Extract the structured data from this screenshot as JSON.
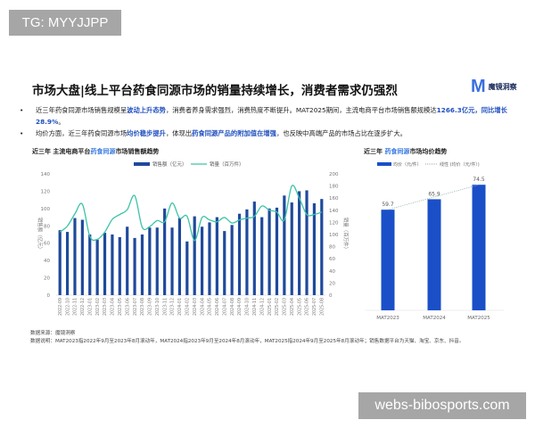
{
  "watermarks": {
    "top_left": "TG: MYYJJPP",
    "bottom_right": "webs-bibosports.com"
  },
  "header": {
    "title": "市场大盘|线上平台药食同源市场的销量持续增长，消费者需求仍强烈",
    "logo_text": "魔镜洞察"
  },
  "bullets": [
    {
      "parts": [
        {
          "text": "近三年药食同源市场销售规模呈",
          "hl": false
        },
        {
          "text": "波动上升态势",
          "hl": true
        },
        {
          "text": "，消费者养身需求强烈，消费热度不断提升。MAT2025期间，主流电商平台市场销售额规模达",
          "hl": false
        },
        {
          "text": "1266.3亿元，同比增长28.9%",
          "hl": true
        },
        {
          "text": "。",
          "hl": false
        }
      ]
    },
    {
      "parts": [
        {
          "text": "均价方面，近三年药食同源市场",
          "hl": false
        },
        {
          "text": "均价稳步提升",
          "hl": true
        },
        {
          "text": "，体现出",
          "hl": false
        },
        {
          "text": "药食同源产品的附加值在增强",
          "hl": true
        },
        {
          "text": "，也反映中高端产品的市场占比在逐步扩大。",
          "hl": false
        }
      ]
    }
  ],
  "left_chart": {
    "title_pre": "近三年 主流电商平台",
    "title_hl": "药食同源",
    "title_post": "市场销售额趋势"
  },
  "right_chart": {
    "title_pre": "近三年 ",
    "title_hl": "药食同源",
    "title_post": "市场均价趋势"
  },
  "chart_data": [
    {
      "type": "bar+line",
      "categories": [
        "2022-09",
        "2022-10",
        "2022-11",
        "2022-12",
        "2023-01",
        "2023-02",
        "2023-03",
        "2023-04",
        "2023-05",
        "2023-06",
        "2023-07",
        "2023-08",
        "2023-09",
        "2023-10",
        "2023-11",
        "2023-12",
        "2024-01",
        "2024-02",
        "2024-03",
        "2024-04",
        "2024-05",
        "2024-06",
        "2024-07",
        "2024-08",
        "2024-09",
        "2024-10",
        "2024-11",
        "2024-12",
        "2025-01",
        "2025-02",
        "2025-03",
        "2025-04",
        "2025-05",
        "2025-06",
        "2025-07",
        "2025-08"
      ],
      "series": [
        {
          "name": "销售额（亿元）",
          "type": "bar",
          "axis": "left",
          "color": "#1f4a9c",
          "values": [
            75,
            73,
            89,
            87,
            70,
            64,
            72,
            70,
            67,
            79,
            66,
            70,
            78,
            78,
            100,
            78,
            89,
            62,
            91,
            79,
            84,
            90,
            74,
            81,
            94,
            99,
            108,
            90,
            100,
            101,
            115,
            107,
            120,
            121,
            106,
            111
          ]
        },
        {
          "name": "销量（百万件）",
          "type": "line",
          "axis": "right",
          "color": "#3cc3a6",
          "values": [
            104,
            114,
            134,
            150,
            97,
            92,
            104,
            125,
            133,
            141,
            164,
            112,
            113,
            123,
            121,
            152,
            127,
            130,
            90,
            128,
            124,
            121,
            128,
            119,
            124,
            127,
            130,
            147,
            140,
            137,
            124,
            180,
            160,
            133,
            133,
            137
          ]
        }
      ],
      "ylabel": "销售额（亿元）",
      "y2label": "销量（百万件）",
      "ylim": [
        0,
        140
      ],
      "yticks": [
        0,
        20,
        40,
        60,
        80,
        100,
        120,
        140
      ],
      "y2lim": [
        0,
        200
      ],
      "y2ticks": [
        0,
        20,
        40,
        60,
        80,
        100,
        120,
        140,
        160,
        180,
        200
      ],
      "legend": "top"
    },
    {
      "type": "bar",
      "categories": [
        "MAT2023",
        "MAT2024",
        "MAT2025"
      ],
      "values": [
        59.7,
        65.9,
        74.5
      ],
      "series": [
        {
          "name": "均价（元/件）",
          "type": "bar",
          "color": "#1a4fc8"
        },
        {
          "name": "线性 (均价（元/件）)",
          "type": "trendline",
          "style": "dotted"
        }
      ],
      "legend": "top"
    }
  ],
  "notes": {
    "source": "数据来源：魔镜洞察",
    "explanation": "数据说明：MAT2023指2022年9月至2023年8月滚动年，MAT2024指2023年9月至2024年8月滚动年，MAT2025指2024年9月至2025年8月滚动年；销售数据平台为天猫、淘宝、京东、抖音。"
  }
}
